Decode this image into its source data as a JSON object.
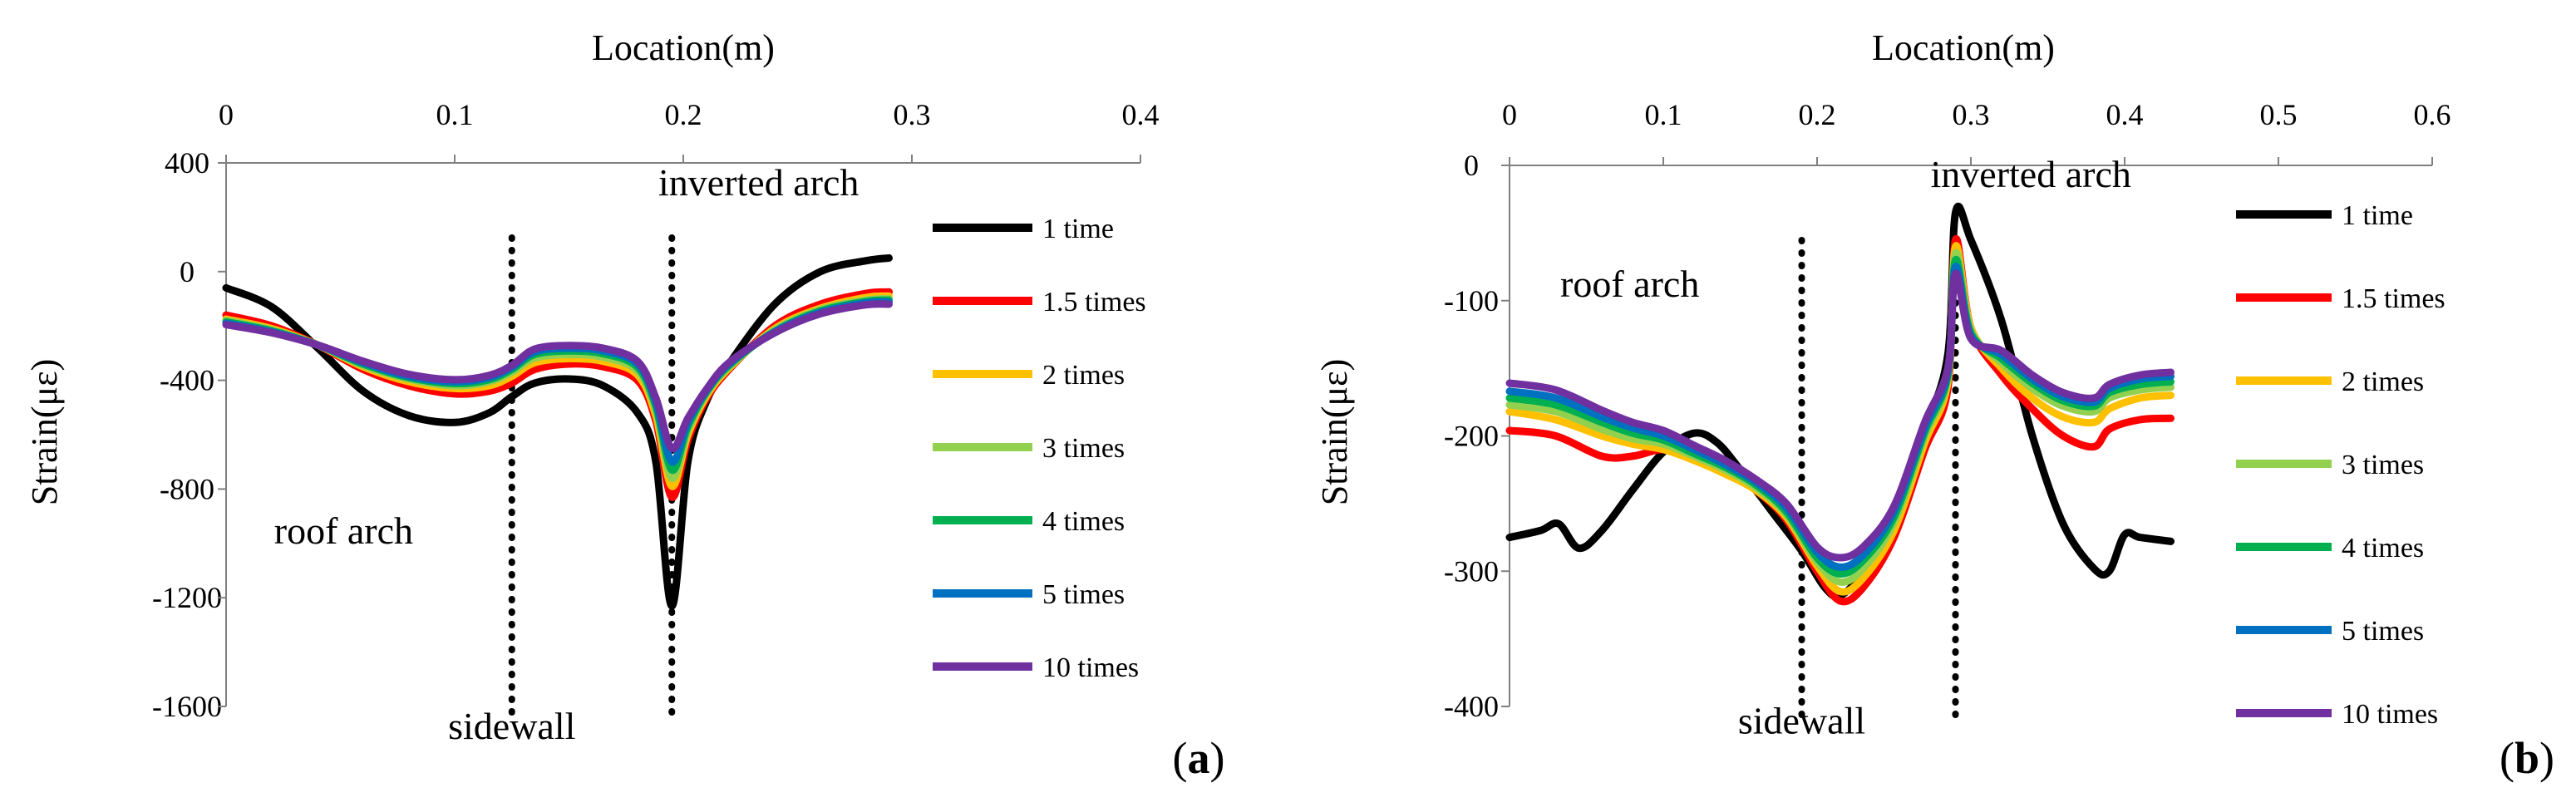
{
  "chart_data": [
    {
      "type": "line",
      "panel_label": "a",
      "xlabel": "Location(m)",
      "ylabel": "Strain(με)",
      "xlim": [
        0,
        0.4
      ],
      "ylim": [
        -1600,
        400
      ],
      "x_ticks": [
        "0",
        "0.1",
        "0.2",
        "0.3",
        "0.4"
      ],
      "y_ticks": [
        "400",
        "0",
        "-400",
        "-800",
        "-1200",
        "-1600"
      ],
      "x_axis_position": "top",
      "boundaries": [
        0.125,
        0.195
      ],
      "annotations": [
        {
          "text": "inverted arch",
          "x": 0.2,
          "y": 280
        },
        {
          "text": "roof arch",
          "x": 0.021,
          "y": -1000
        },
        {
          "text": "sidewall",
          "x": 0.125,
          "y": -1720
        }
      ],
      "series": [
        {
          "name": "1 time",
          "color": "#000000",
          "x": [
            0,
            0.02,
            0.04,
            0.06,
            0.08,
            0.1,
            0.115,
            0.125,
            0.135,
            0.15,
            0.165,
            0.18,
            0.188,
            0.195,
            0.202,
            0.21,
            0.22,
            0.24,
            0.26,
            0.28,
            0.29
          ],
          "y": [
            -60,
            -130,
            -280,
            -440,
            -530,
            -555,
            -520,
            -460,
            -410,
            -395,
            -420,
            -520,
            -700,
            -1230,
            -700,
            -480,
            -340,
            -120,
            0,
            40,
            50
          ]
        },
        {
          "name": "1.5 times",
          "color": "#ff0000",
          "x": [
            0,
            0.02,
            0.04,
            0.06,
            0.08,
            0.1,
            0.115,
            0.125,
            0.135,
            0.15,
            0.165,
            0.18,
            0.188,
            0.195,
            0.202,
            0.21,
            0.22,
            0.24,
            0.26,
            0.28,
            0.29
          ],
          "y": [
            -160,
            -200,
            -270,
            -360,
            -420,
            -450,
            -440,
            -410,
            -360,
            -340,
            -350,
            -400,
            -550,
            -830,
            -620,
            -470,
            -360,
            -200,
            -120,
            -80,
            -75
          ]
        },
        {
          "name": "2 times",
          "color": "#ffc000",
          "x": [
            0,
            0.02,
            0.04,
            0.06,
            0.08,
            0.1,
            0.115,
            0.125,
            0.135,
            0.15,
            0.165,
            0.18,
            0.188,
            0.195,
            0.202,
            0.21,
            0.22,
            0.24,
            0.26,
            0.28,
            0.29
          ],
          "y": [
            -175,
            -210,
            -270,
            -350,
            -405,
            -430,
            -420,
            -385,
            -335,
            -320,
            -330,
            -380,
            -530,
            -790,
            -600,
            -460,
            -355,
            -210,
            -135,
            -95,
            -90
          ]
        },
        {
          "name": "3 times",
          "color": "#92d050",
          "x": [
            0,
            0.02,
            0.04,
            0.06,
            0.08,
            0.1,
            0.115,
            0.125,
            0.135,
            0.15,
            0.165,
            0.18,
            0.188,
            0.195,
            0.202,
            0.21,
            0.22,
            0.24,
            0.26,
            0.28,
            0.29
          ],
          "y": [
            -180,
            -215,
            -270,
            -345,
            -395,
            -420,
            -405,
            -370,
            -318,
            -305,
            -315,
            -365,
            -510,
            -760,
            -585,
            -450,
            -350,
            -215,
            -140,
            -105,
            -100
          ]
        },
        {
          "name": "4 times",
          "color": "#00b050",
          "x": [
            0,
            0.02,
            0.04,
            0.06,
            0.08,
            0.1,
            0.115,
            0.125,
            0.135,
            0.15,
            0.165,
            0.18,
            0.188,
            0.195,
            0.202,
            0.21,
            0.22,
            0.24,
            0.26,
            0.28,
            0.29
          ],
          "y": [
            -185,
            -218,
            -270,
            -340,
            -390,
            -412,
            -398,
            -360,
            -305,
            -292,
            -302,
            -352,
            -495,
            -730,
            -570,
            -445,
            -345,
            -220,
            -145,
            -110,
            -105
          ]
        },
        {
          "name": "5 times",
          "color": "#0070c0",
          "x": [
            0,
            0.02,
            0.04,
            0.06,
            0.08,
            0.1,
            0.115,
            0.125,
            0.135,
            0.15,
            0.165,
            0.18,
            0.188,
            0.195,
            0.202,
            0.21,
            0.22,
            0.24,
            0.26,
            0.28,
            0.29
          ],
          "y": [
            -190,
            -222,
            -270,
            -335,
            -385,
            -405,
            -390,
            -352,
            -295,
            -282,
            -292,
            -340,
            -480,
            -700,
            -555,
            -440,
            -340,
            -222,
            -150,
            -115,
            -112
          ]
        },
        {
          "name": "10 times",
          "color": "#7030a0",
          "x": [
            0,
            0.02,
            0.04,
            0.06,
            0.08,
            0.1,
            0.115,
            0.125,
            0.135,
            0.15,
            0.165,
            0.18,
            0.188,
            0.195,
            0.202,
            0.21,
            0.22,
            0.24,
            0.26,
            0.28,
            0.29
          ],
          "y": [
            -195,
            -225,
            -270,
            -330,
            -378,
            -398,
            -382,
            -345,
            -285,
            -272,
            -282,
            -330,
            -465,
            -650,
            -540,
            -435,
            -335,
            -225,
            -155,
            -122,
            -120
          ]
        }
      ]
    },
    {
      "type": "line",
      "panel_label": "b",
      "xlabel": "Location(m)",
      "ylabel": "Strain(με)",
      "xlim": [
        0,
        0.6
      ],
      "ylim": [
        -400,
        0
      ],
      "x_ticks": [
        "0",
        "0.1",
        "0.2",
        "0.3",
        "0.4",
        "0.5",
        "0.6"
      ],
      "y_ticks": [
        "0",
        "-100",
        "-200",
        "-300",
        "-400"
      ],
      "x_axis_position": "top",
      "boundaries": [
        0.19,
        0.29
      ],
      "annotations": [
        {
          "text": "inverted arch",
          "x": 0.29,
          "y": -16
        },
        {
          "text": "roof arch",
          "x": 0.033,
          "y": -97
        },
        {
          "text": "sidewall",
          "x": 0.19,
          "y": -420
        }
      ],
      "series": [
        {
          "name": "1 time",
          "color": "#000000",
          "x": [
            0,
            0.02,
            0.032,
            0.045,
            0.06,
            0.08,
            0.1,
            0.12,
            0.135,
            0.15,
            0.17,
            0.19,
            0.205,
            0.215,
            0.23,
            0.25,
            0.27,
            0.285,
            0.29,
            0.3,
            0.32,
            0.34,
            0.36,
            0.38,
            0.39,
            0.4,
            0.41,
            0.43
          ],
          "y": [
            -275,
            -270,
            -265,
            -283,
            -270,
            -240,
            -212,
            -198,
            -205,
            -225,
            -255,
            -285,
            -312,
            -318,
            -300,
            -255,
            -195,
            -140,
            -35,
            -55,
            -115,
            -200,
            -265,
            -298,
            -300,
            -273,
            -275,
            -278
          ]
        },
        {
          "name": "1.5 times",
          "color": "#ff0000",
          "x": [
            0,
            0.03,
            0.06,
            0.08,
            0.1,
            0.12,
            0.14,
            0.16,
            0.18,
            0.2,
            0.215,
            0.23,
            0.25,
            0.27,
            0.285,
            0.29,
            0.3,
            0.32,
            0.34,
            0.36,
            0.38,
            0.39,
            0.41,
            0.43
          ],
          "y": [
            -196,
            -200,
            -215,
            -215,
            -210,
            -215,
            -225,
            -240,
            -262,
            -300,
            -322,
            -312,
            -275,
            -210,
            -165,
            -55,
            -120,
            -155,
            -180,
            -200,
            -208,
            -195,
            -188,
            -187
          ]
        },
        {
          "name": "2 times",
          "color": "#ffc000",
          "x": [
            0,
            0.03,
            0.06,
            0.08,
            0.1,
            0.12,
            0.14,
            0.16,
            0.18,
            0.2,
            0.215,
            0.23,
            0.25,
            0.27,
            0.285,
            0.29,
            0.3,
            0.32,
            0.34,
            0.36,
            0.38,
            0.39,
            0.41,
            0.43
          ],
          "y": [
            -182,
            -188,
            -200,
            -206,
            -210,
            -218,
            -228,
            -240,
            -260,
            -296,
            -315,
            -305,
            -270,
            -205,
            -160,
            -60,
            -120,
            -150,
            -172,
            -186,
            -190,
            -180,
            -172,
            -170
          ]
        },
        {
          "name": "3 times",
          "color": "#92d050",
          "x": [
            0,
            0.03,
            0.06,
            0.08,
            0.1,
            0.12,
            0.14,
            0.16,
            0.18,
            0.2,
            0.215,
            0.23,
            0.25,
            0.27,
            0.285,
            0.29,
            0.3,
            0.32,
            0.34,
            0.36,
            0.38,
            0.39,
            0.41,
            0.43
          ],
          "y": [
            -177,
            -182,
            -195,
            -202,
            -206,
            -215,
            -225,
            -238,
            -258,
            -293,
            -308,
            -298,
            -264,
            -200,
            -157,
            -65,
            -122,
            -146,
            -165,
            -178,
            -182,
            -172,
            -166,
            -164
          ]
        },
        {
          "name": "4 times",
          "color": "#00b050",
          "x": [
            0,
            0.03,
            0.06,
            0.08,
            0.1,
            0.12,
            0.14,
            0.16,
            0.18,
            0.2,
            0.215,
            0.23,
            0.25,
            0.27,
            0.285,
            0.29,
            0.3,
            0.32,
            0.34,
            0.36,
            0.38,
            0.39,
            0.41,
            0.43
          ],
          "y": [
            -172,
            -177,
            -190,
            -198,
            -203,
            -213,
            -223,
            -236,
            -256,
            -290,
            -302,
            -292,
            -260,
            -197,
            -155,
            -70,
            -124,
            -143,
            -161,
            -174,
            -178,
            -168,
            -162,
            -160
          ]
        },
        {
          "name": "5 times",
          "color": "#0070c0",
          "x": [
            0,
            0.03,
            0.06,
            0.08,
            0.1,
            0.12,
            0.14,
            0.16,
            0.18,
            0.2,
            0.215,
            0.23,
            0.25,
            0.27,
            0.285,
            0.29,
            0.3,
            0.32,
            0.34,
            0.36,
            0.38,
            0.39,
            0.41,
            0.43
          ],
          "y": [
            -167,
            -172,
            -186,
            -194,
            -200,
            -210,
            -221,
            -234,
            -253,
            -286,
            -297,
            -288,
            -256,
            -194,
            -153,
            -75,
            -126,
            -140,
            -158,
            -171,
            -175,
            -165,
            -158,
            -156
          ]
        },
        {
          "name": "10 times",
          "color": "#7030a0",
          "x": [
            0,
            0.03,
            0.06,
            0.08,
            0.1,
            0.12,
            0.14,
            0.16,
            0.18,
            0.2,
            0.215,
            0.23,
            0.25,
            0.27,
            0.285,
            0.29,
            0.3,
            0.32,
            0.34,
            0.36,
            0.38,
            0.39,
            0.41,
            0.43
          ],
          "y": [
            -161,
            -166,
            -181,
            -190,
            -196,
            -207,
            -218,
            -232,
            -250,
            -282,
            -290,
            -282,
            -252,
            -190,
            -150,
            -80,
            -128,
            -137,
            -155,
            -168,
            -172,
            -162,
            -155,
            -153
          ]
        }
      ]
    }
  ]
}
